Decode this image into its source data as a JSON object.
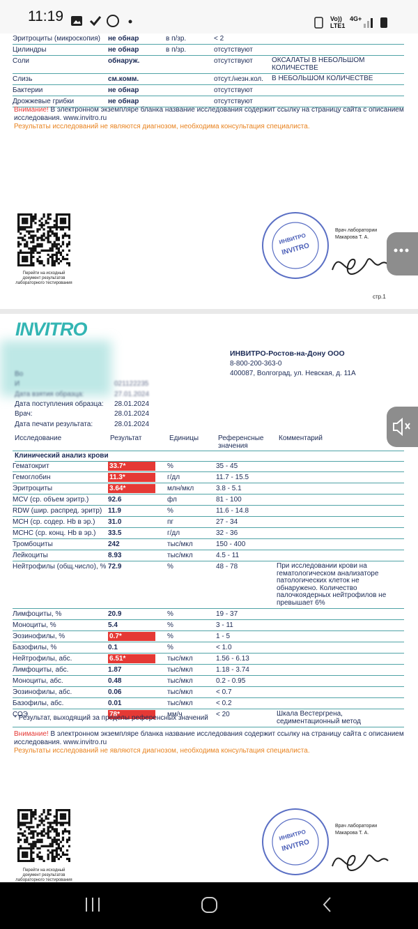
{
  "status_bar": {
    "time": "11:19",
    "voice": "Vo))",
    "network": "4G+",
    "carrier": "LTE1"
  },
  "page1": {
    "rows": [
      {
        "test": "Эритроциты (микроскопия)",
        "result": "не обнар",
        "units": "в п/зр.",
        "reference": "< 2"
      },
      {
        "test": "Цилиндры",
        "result": "не обнар",
        "units": "в п/зр.",
        "reference": "отсутствуют"
      },
      {
        "test": "Соли",
        "result": "обнаруж.",
        "reference": "отсутствуют",
        "comment": "ОКСАЛАТЫ В НЕБОЛЬШОМ КОЛИЧЕСТВЕ"
      },
      {
        "test": "Слизь",
        "result": "см.комм.",
        "reference": "отсут./незн.кол.",
        "comment": "В НЕБОЛЬШОМ КОЛИЧЕСТВЕ"
      },
      {
        "test": "Бактерии",
        "result": "не обнар",
        "reference": "отсутствуют"
      },
      {
        "test": "Дрожжевые грибки",
        "result": "не обнар",
        "reference": "отсутствуют"
      }
    ],
    "notice": {
      "label": "Внимание!",
      "text": "В электронном экземпляре бланка название исследования содержит ссылку на страницу сайта с описанием исследования. www.invitro.ru",
      "disclaimer": "Результаты исследований не являются диагнозом, необходима консультация специалиста."
    },
    "qr_caption": "Перейти на исходный документ результатов лабораторного тестирования",
    "doctor": "Врач лаборатории",
    "doctor_name": "Макарова Т. А.",
    "stamp": [
      "ИНВИТРО",
      "INVITRO"
    ],
    "page_number": "стр.1"
  },
  "page2": {
    "logo": "INVITRO",
    "company": {
      "name": "ИНВИТРО-Ростов-на-Дону ООО",
      "phone": "8-800-200-363-0",
      "address": "400087, Волгоград, ул. Невская, д. 11А"
    },
    "patient": [
      {
        "label": "Во",
        "blurred": true
      },
      {
        "label": "И",
        "value": "021122235",
        "blurred": true
      },
      {
        "label": "Дата взятия образца:",
        "value": "27.01.2024",
        "blurred": true
      },
      {
        "label": "Дата поступления образца:",
        "value": "28.01.2024"
      },
      {
        "label": "Врач:",
        "value": "28.01.2024"
      },
      {
        "label": "Дата печати результата:",
        "value": "28.01.2024"
      }
    ],
    "header": [
      "Исследование",
      "Результат",
      "Единицы",
      "Референсные значения",
      "Комментарий"
    ],
    "section": "Клинический анализ крови",
    "rows": [
      {
        "test": "Гематокрит",
        "result": "33.7*",
        "units": "%",
        "reference": "35 - 45",
        "abnormal": true
      },
      {
        "test": "Гемоглобин",
        "result": "11.3*",
        "units": "г/дл",
        "reference": "11.7 - 15.5",
        "abnormal": true
      },
      {
        "test": "Эритроциты",
        "result": "3.64*",
        "units": "млн/мкл",
        "reference": "3.8 - 5.1",
        "abnormal": true
      },
      {
        "test": "MCV (ср. объем эритр.)",
        "result": "92.6",
        "units": "фл",
        "reference": "81 - 100"
      },
      {
        "test": "RDW (шир. распред. эритр)",
        "result": "11.9",
        "units": "%",
        "reference": "11.6 - 14.8"
      },
      {
        "test": "MCH (ср. содер. Hb в эр.)",
        "result": "31.0",
        "units": "пг",
        "reference": "27 - 34"
      },
      {
        "test": "MCHC (ср. конц. Hb в эр.)",
        "result": "33.5",
        "units": "г/дл",
        "reference": "32 - 36"
      },
      {
        "test": "Тромбоциты",
        "result": "242",
        "units": "тыс/мкл",
        "reference": "150 - 400"
      },
      {
        "test": "Лейкоциты",
        "result": "8.93",
        "units": "тыс/мкл",
        "reference": "4.5 - 11"
      },
      {
        "test": "Нейтрофилы (общ.число), %",
        "result": "72.9",
        "units": "%",
        "reference": "48 - 78",
        "comment": "При исследовании крови на гематологическом анализаторе патологических клеток не обнаружено. Количество палочкоядерных нейтрофилов не превышает 6%"
      },
      {
        "test": "Лимфоциты, %",
        "result": "20.9",
        "units": "%",
        "reference": "19 - 37"
      },
      {
        "test": "Моноциты, %",
        "result": "5.4",
        "units": "%",
        "reference": "3 - 11"
      },
      {
        "test": "Эозинофилы, %",
        "result": "0.7*",
        "units": "%",
        "reference": "1 - 5",
        "abnormal": true
      },
      {
        "test": "Базофилы, %",
        "result": "0.1",
        "units": "%",
        "reference": "< 1.0"
      },
      {
        "test": "Нейтрофилы, абс.",
        "result": "6.51*",
        "units": "тыс/мкл",
        "reference": "1.56 - 6.13",
        "abnormal": true
      },
      {
        "test": "Лимфоциты, абс.",
        "result": "1.87",
        "units": "тыс/мкл",
        "reference": "1.18 - 3.74"
      },
      {
        "test": "Моноциты, абс.",
        "result": "0.48",
        "units": "тыс/мкл",
        "reference": "0.2 - 0.95"
      },
      {
        "test": "Эозинофилы, абс.",
        "result": "0.06",
        "units": "тыс/мкл",
        "reference": "< 0.7"
      },
      {
        "test": "Базофилы, абс.",
        "result": "0.01",
        "units": "тыс/мкл",
        "reference": "< 0.2"
      },
      {
        "test": "СОЭ",
        "result": "78*",
        "units": "мм/ч",
        "reference": "< 20",
        "comment": "Шкала Вестергрена, седиментационный метод",
        "abnormal": true
      }
    ],
    "footnote": "* Результат, выходящий за пределы референсных значений",
    "notice": {
      "label": "Внимание!",
      "text": "В электронном экземпляре бланка название исследования содержит ссылку на страницу сайта с описанием исследования. www.invitro.ru",
      "disclaimer": "Результаты исследований не являются диагнозом, необходима консультация специалиста."
    },
    "qr_caption": "Перейти на исходный документ результатов лабораторного тестирования",
    "doctor": "Врач лаборатории",
    "doctor_name": "Макарова Т. А.",
    "stamp": [
      "ИНВИТРО",
      "INVITRO"
    ]
  }
}
